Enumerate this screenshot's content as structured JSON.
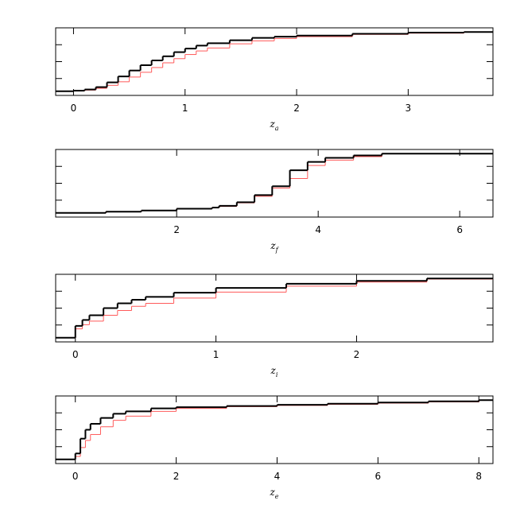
{
  "chart_data": [
    {
      "type": "step",
      "xlabel": "z",
      "xlabel_sub": "a",
      "xlim": [
        -0.16,
        3.76
      ],
      "xticks": [
        0,
        1,
        2,
        3
      ],
      "ylim": [
        -0.07,
        1.07
      ],
      "x": [
        -0.16,
        0,
        0.1,
        0.2,
        0.3,
        0.4,
        0.5,
        0.6,
        0.7,
        0.8,
        0.9,
        1.0,
        1.1,
        1.2,
        1.4,
        1.6,
        1.8,
        2.0,
        2.5,
        3.0,
        3.5
      ],
      "series": [
        {
          "color": "#000000",
          "values": [
            0,
            0.01,
            0.03,
            0.07,
            0.15,
            0.25,
            0.35,
            0.44,
            0.52,
            0.59,
            0.66,
            0.72,
            0.77,
            0.81,
            0.86,
            0.9,
            0.92,
            0.94,
            0.97,
            0.99,
            1.0
          ]
        },
        {
          "color": "#ff5a5a",
          "values": [
            0,
            0.005,
            0.02,
            0.05,
            0.1,
            0.16,
            0.24,
            0.32,
            0.4,
            0.48,
            0.55,
            0.62,
            0.68,
            0.73,
            0.8,
            0.85,
            0.89,
            0.92,
            0.96,
            0.98,
            1.0
          ]
        }
      ]
    },
    {
      "type": "step",
      "xlabel": "z",
      "xlabel_sub": "f",
      "xlim": [
        0.29,
        6.47
      ],
      "xticks": [
        2,
        4,
        6
      ],
      "ylim": [
        -0.07,
        1.07
      ],
      "x": [
        0.29,
        1.0,
        1.5,
        2.0,
        2.5,
        2.6,
        2.85,
        3.1,
        3.35,
        3.6,
        3.85,
        4.1,
        4.5,
        4.9
      ],
      "series": [
        {
          "color": "#000000",
          "values": [
            0,
            0.02,
            0.04,
            0.07,
            0.09,
            0.12,
            0.18,
            0.3,
            0.45,
            0.72,
            0.86,
            0.93,
            0.97,
            1.0
          ]
        },
        {
          "color": "#ff5a5a",
          "values": [
            0,
            0.02,
            0.04,
            0.07,
            0.09,
            0.11,
            0.17,
            0.28,
            0.42,
            0.58,
            0.8,
            0.89,
            0.95,
            1.0
          ]
        }
      ]
    },
    {
      "type": "step",
      "xlabel": "z",
      "xlabel_sub": "i",
      "xlim": [
        -0.14,
        2.97
      ],
      "xticks": [
        0,
        1,
        2
      ],
      "ylim": [
        -0.07,
        1.07
      ],
      "x": [
        -0.14,
        0,
        0.05,
        0.1,
        0.2,
        0.3,
        0.4,
        0.5,
        0.7,
        1.0,
        1.5,
        2.0,
        2.5
      ],
      "series": [
        {
          "color": "#000000",
          "values": [
            0,
            0.2,
            0.3,
            0.38,
            0.5,
            0.58,
            0.64,
            0.69,
            0.76,
            0.84,
            0.91,
            0.96,
            1.0
          ]
        },
        {
          "color": "#ff5a5a",
          "values": [
            0,
            0.15,
            0.22,
            0.28,
            0.38,
            0.46,
            0.53,
            0.58,
            0.67,
            0.77,
            0.87,
            0.94,
            0.99
          ]
        }
      ]
    },
    {
      "type": "step",
      "xlabel": "z",
      "xlabel_sub": "e",
      "xlim": [
        -0.39,
        8.28
      ],
      "xticks": [
        0,
        2,
        4,
        6,
        8
      ],
      "ylim": [
        -0.07,
        1.07
      ],
      "x": [
        -0.39,
        0,
        0.1,
        0.2,
        0.3,
        0.5,
        0.75,
        1.0,
        1.5,
        2.0,
        3.0,
        4.0,
        5.0,
        6.0,
        7.0,
        8.0
      ],
      "series": [
        {
          "color": "#000000",
          "values": [
            0,
            0.1,
            0.35,
            0.5,
            0.6,
            0.7,
            0.77,
            0.81,
            0.86,
            0.88,
            0.9,
            0.92,
            0.94,
            0.96,
            0.98,
            1.0
          ]
        },
        {
          "color": "#ff5a5a",
          "values": [
            0,
            0.05,
            0.2,
            0.32,
            0.42,
            0.55,
            0.66,
            0.73,
            0.81,
            0.86,
            0.89,
            0.91,
            0.93,
            0.95,
            0.97,
            1.0
          ]
        }
      ]
    }
  ]
}
